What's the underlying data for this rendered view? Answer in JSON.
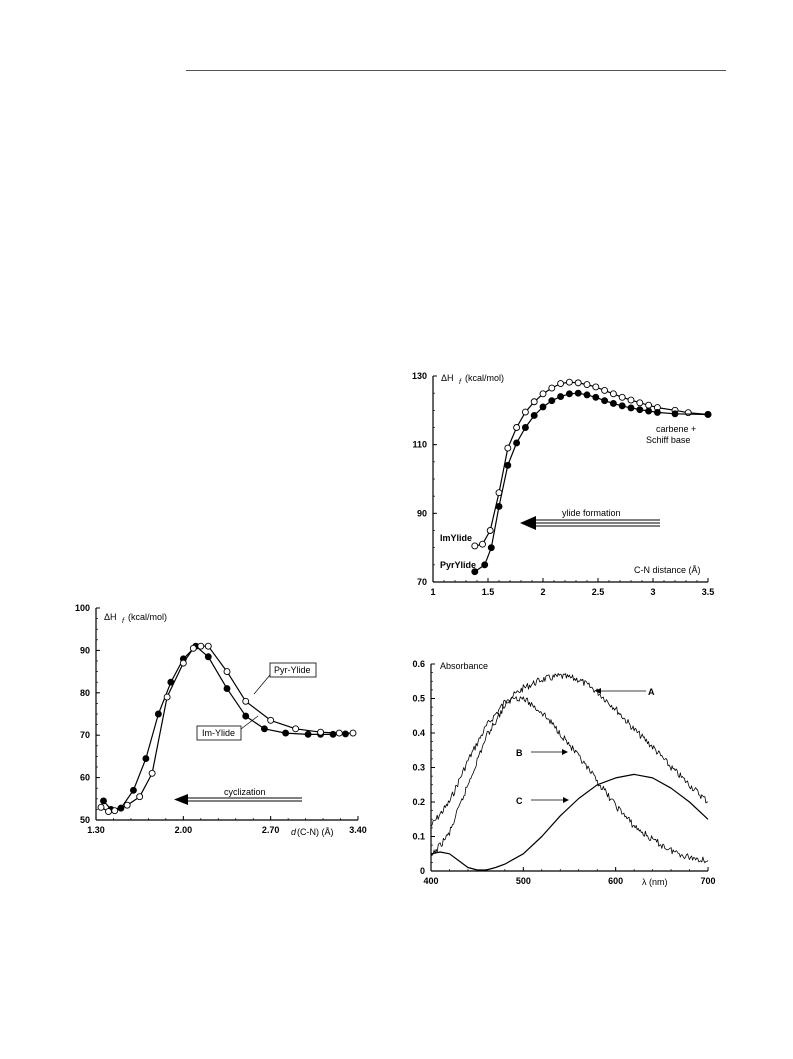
{
  "chart_data": [
    {
      "type": "line",
      "ylabel_prefix": "ΔH",
      "ylabel_sub": "f",
      "ylabel_unit": "(kcal/mol)",
      "xlabel": "C-N distance (Å)",
      "xlim": [
        1,
        3.5
      ],
      "ylim": [
        70,
        130
      ],
      "x_ticks": [
        "1",
        "1.5",
        "2",
        "2.5",
        "3",
        "3.5"
      ],
      "y_ticks": [
        "70",
        "90",
        "110",
        "130"
      ],
      "annotations": {
        "corner": "carbene +",
        "corner2": "Schiff base",
        "arrow": "ylide formation"
      },
      "series": [
        {
          "name": "ImYlide",
          "marker": "open",
          "x": [
            1.38,
            1.45,
            1.52,
            1.6,
            1.68,
            1.76,
            1.84,
            1.92,
            2.0,
            2.08,
            2.16,
            2.24,
            2.32,
            2.4,
            2.48,
            2.56,
            2.64,
            2.72,
            2.8,
            2.88,
            2.96,
            3.04,
            3.2,
            3.32,
            3.5
          ],
          "y": [
            80.5,
            81,
            85,
            96,
            109,
            115,
            119.5,
            122.5,
            124.8,
            126.5,
            127.8,
            128.2,
            128,
            127.5,
            126.8,
            125.8,
            124.8,
            123.8,
            123,
            122.2,
            121.5,
            120.8,
            120,
            119.3,
            118.8
          ]
        },
        {
          "name": "PyrYlide",
          "marker": "filled",
          "x": [
            1.38,
            1.47,
            1.53,
            1.6,
            1.68,
            1.76,
            1.84,
            1.92,
            2.0,
            2.08,
            2.16,
            2.24,
            2.32,
            2.4,
            2.48,
            2.56,
            2.64,
            2.72,
            2.8,
            2.88,
            2.96,
            3.04,
            3.2,
            3.5
          ],
          "y": [
            73,
            75,
            80,
            92,
            104,
            110.5,
            115,
            118.5,
            121,
            122.8,
            124,
            124.8,
            125,
            124.5,
            123.8,
            122.8,
            122,
            121.3,
            120.7,
            120.2,
            119.8,
            119.4,
            119,
            118.8
          ]
        }
      ]
    },
    {
      "type": "line",
      "ylabel_prefix": "ΔH",
      "ylabel_sub": "f",
      "ylabel_unit": "(kcal/mol)",
      "xlabel_italic": "d",
      "xlabel_rest": "(C-N) (Å)",
      "xlim": [
        1.3,
        3.4
      ],
      "ylim": [
        50,
        100
      ],
      "x_ticks": [
        "1.30",
        "2.00",
        "2.70",
        "3.40"
      ],
      "y_ticks": [
        "50",
        "60",
        "70",
        "80",
        "90",
        "100"
      ],
      "annotations": {
        "pyr_box": "Pyr-Ylide",
        "im_box": "Im-Ylide",
        "arrow": "cyclization"
      },
      "series": [
        {
          "name": "Pyr-Ylide",
          "marker": "filled",
          "x": [
            1.36,
            1.42,
            1.5,
            1.6,
            1.7,
            1.8,
            1.9,
            2.0,
            2.1,
            2.2,
            2.35,
            2.5,
            2.65,
            2.82,
            3.0,
            3.1,
            3.2,
            3.3
          ],
          "y": [
            54.5,
            52.5,
            52.8,
            57,
            64.5,
            75,
            82.5,
            88,
            91,
            88.5,
            81,
            74.5,
            71.5,
            70.5,
            70.2,
            70.2,
            70.2,
            70.3
          ]
        },
        {
          "name": "Im-Ylide",
          "marker": "open",
          "x": [
            1.34,
            1.4,
            1.45,
            1.55,
            1.65,
            1.75,
            1.87,
            2.0,
            2.08,
            2.14,
            2.2,
            2.35,
            2.5,
            2.7,
            2.9,
            3.1,
            3.25,
            3.36
          ],
          "y": [
            53,
            52,
            52.2,
            53.5,
            55.5,
            61,
            79,
            87,
            90.5,
            91,
            91,
            85,
            78,
            73.5,
            71.5,
            70.7,
            70.5,
            70.5
          ]
        }
      ]
    },
    {
      "type": "line",
      "ylabel": "Absorbance",
      "xlabel": "λ (nm)",
      "xlim": [
        400,
        700
      ],
      "ylim": [
        0,
        0.6
      ],
      "x_ticks": [
        "400",
        "500",
        "600",
        "700"
      ],
      "y_ticks": [
        "0",
        "0.1",
        "0.2",
        "0.3",
        "0.4",
        "0.5",
        "0.6"
      ],
      "series": [
        {
          "name": "A",
          "noisy": true,
          "x": [
            400,
            420,
            440,
            460,
            480,
            500,
            520,
            540,
            560,
            580,
            600,
            620,
            640,
            660,
            680,
            700
          ],
          "y": [
            0.13,
            0.2,
            0.32,
            0.42,
            0.49,
            0.53,
            0.555,
            0.565,
            0.555,
            0.52,
            0.47,
            0.41,
            0.36,
            0.3,
            0.25,
            0.2
          ]
        },
        {
          "name": "B",
          "noisy": true,
          "x": [
            400,
            420,
            440,
            460,
            480,
            490,
            500,
            520,
            540,
            560,
            580,
            600,
            620,
            640,
            660,
            680,
            700
          ],
          "y": [
            0.04,
            0.11,
            0.25,
            0.39,
            0.48,
            0.505,
            0.5,
            0.46,
            0.4,
            0.33,
            0.26,
            0.19,
            0.13,
            0.09,
            0.06,
            0.04,
            0.03
          ]
        },
        {
          "name": "C",
          "noisy": false,
          "x": [
            400,
            410,
            420,
            430,
            440,
            450,
            460,
            470,
            480,
            500,
            520,
            540,
            560,
            580,
            600,
            620,
            640,
            660,
            680,
            700
          ],
          "y": [
            0.05,
            0.055,
            0.05,
            0.03,
            0.01,
            0.003,
            0.003,
            0.01,
            0.02,
            0.05,
            0.1,
            0.16,
            0.21,
            0.25,
            0.27,
            0.28,
            0.27,
            0.24,
            0.2,
            0.15
          ]
        }
      ]
    }
  ]
}
